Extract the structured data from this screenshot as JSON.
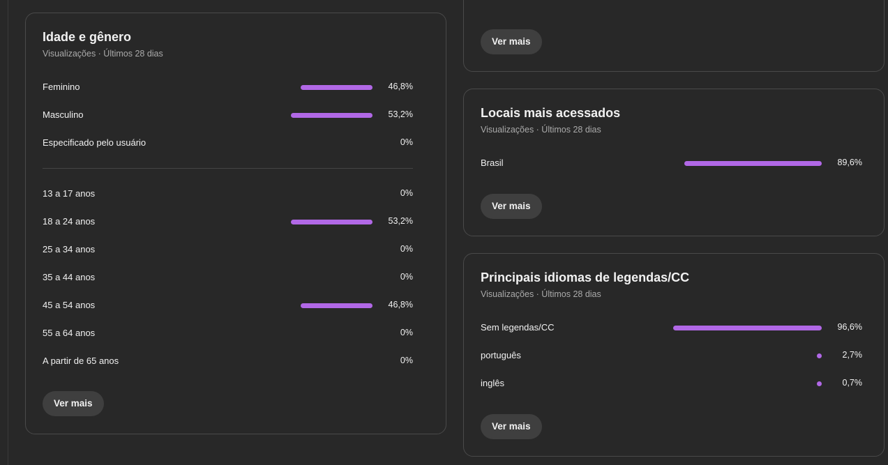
{
  "age_gender": {
    "title": "Idade e gênero",
    "subtitle": "Visualizações · Últimos 28 dias",
    "gender": [
      {
        "label": "Feminino",
        "value": 46.8,
        "pct": "46,8%"
      },
      {
        "label": "Masculino",
        "value": 53.2,
        "pct": "53,2%"
      },
      {
        "label": "Especificado pelo usuário",
        "value": 0,
        "pct": "0%"
      }
    ],
    "age": [
      {
        "label": "13 a 17 anos",
        "value": 0,
        "pct": "0%"
      },
      {
        "label": "18 a 24 anos",
        "value": 53.2,
        "pct": "53,2%"
      },
      {
        "label": "25 a 34 anos",
        "value": 0,
        "pct": "0%"
      },
      {
        "label": "35 a 44 anos",
        "value": 0,
        "pct": "0%"
      },
      {
        "label": "45 a 54 anos",
        "value": 46.8,
        "pct": "46,8%"
      },
      {
        "label": "55 a 64 anos",
        "value": 0,
        "pct": "0%"
      },
      {
        "label": "A partir de 65 anos",
        "value": 0,
        "pct": "0%"
      }
    ],
    "button": "Ver mais"
  },
  "top_card": {
    "button": "Ver mais"
  },
  "locations": {
    "title": "Locais mais acessados",
    "subtitle": "Visualizações · Últimos 28 dias",
    "rows": [
      {
        "label": "Brasil",
        "value": 89.6,
        "pct": "89,6%"
      }
    ],
    "button": "Ver mais"
  },
  "subtitles": {
    "title": "Principais idiomas de legendas/CC",
    "subtitle": "Visualizações · Últimos 28 dias",
    "rows": [
      {
        "label": "Sem legendas/CC",
        "value": 96.6,
        "pct": "96,6%"
      },
      {
        "label": "português",
        "value": 2.7,
        "pct": "2,7%"
      },
      {
        "label": "inglês",
        "value": 0.7,
        "pct": "0,7%"
      }
    ],
    "button": "Ver mais"
  },
  "colors": {
    "bar": "#b168e6",
    "background": "#282828",
    "border": "#4a4a4a"
  }
}
